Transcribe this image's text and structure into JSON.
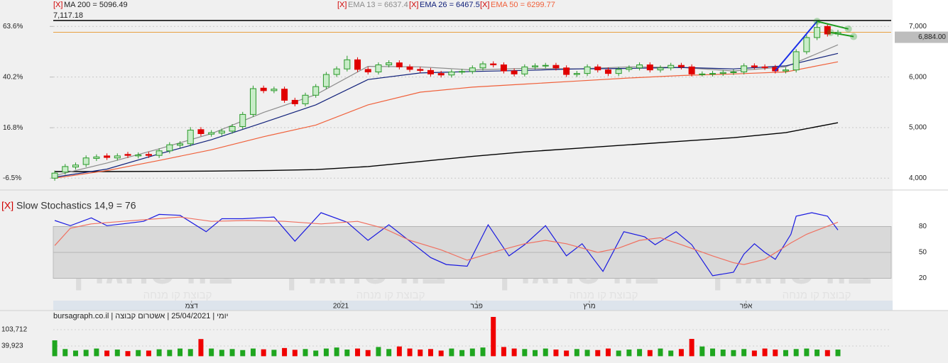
{
  "chart_data": [
    {
      "type": "candlestick",
      "close_mark": "[X]",
      "open": [
        4000,
        4120,
        4220,
        4270,
        4390,
        4440,
        4400,
        4470,
        4440,
        4470,
        4450,
        4540,
        4650,
        4680,
        4960,
        4870,
        4890,
        4930,
        5020,
        5260,
        5780,
        5730,
        5760,
        5540,
        5470,
        5640,
        5810,
        6050,
        6160,
        6340,
        6150,
        6100,
        6240,
        6280,
        6200,
        6150,
        6130,
        6070,
        6040,
        6100,
        6110,
        6180,
        6260,
        6240,
        6120,
        6060,
        6200,
        6220,
        6230,
        6180,
        6050,
        6070,
        6200,
        6140,
        6070,
        6150,
        6180,
        6240,
        6140,
        6180,
        6230,
        6200,
        6060,
        6060,
        6070,
        6090,
        6100,
        6220,
        6200,
        6190,
        6120,
        6140,
        6500,
        6780,
        7000,
        6850
      ],
      "high": [
        4150,
        4280,
        4310,
        4450,
        4470,
        4490,
        4490,
        4520,
        4510,
        4520,
        4590,
        4710,
        4730,
        5010,
        5010,
        4950,
        4980,
        5070,
        5310,
        5830,
        5830,
        5810,
        5810,
        5590,
        5690,
        5860,
        6100,
        6210,
        6420,
        6390,
        6200,
        6290,
        6330,
        6330,
        6250,
        6200,
        6180,
        6120,
        6150,
        6160,
        6230,
        6310,
        6310,
        6290,
        6170,
        6250,
        6270,
        6280,
        6280,
        6230,
        6120,
        6250,
        6250,
        6190,
        6200,
        6230,
        6290,
        6290,
        6230,
        6280,
        6280,
        6250,
        6110,
        6120,
        6140,
        6150,
        6270,
        6270,
        6250,
        6240,
        6190,
        6550,
        6830,
        7100,
        7050,
        6930
      ],
      "low": [
        3950,
        4070,
        4170,
        4220,
        4340,
        4360,
        4350,
        4400,
        4390,
        4400,
        4400,
        4490,
        4600,
        4630,
        4830,
        4820,
        4840,
        4880,
        4970,
        5210,
        5680,
        5680,
        5490,
        5420,
        5420,
        5590,
        5760,
        6000,
        6110,
        6100,
        6050,
        6050,
        6190,
        6150,
        6100,
        6080,
        6010,
        5990,
        5990,
        6050,
        6060,
        6130,
        6190,
        6070,
        6010,
        6010,
        6150,
        6170,
        6130,
        6000,
        6000,
        6020,
        6090,
        6020,
        6020,
        6100,
        6130,
        6090,
        6090,
        6130,
        6150,
        6010,
        6010,
        6010,
        6020,
        6040,
        6050,
        6150,
        6140,
        6070,
        6070,
        6090,
        6450,
        6730,
        6800,
        6800
      ],
      "close": [
        4100,
        4230,
        4260,
        4400,
        4420,
        4410,
        4440,
        4450,
        4460,
        4450,
        4540,
        4660,
        4680,
        4950,
        4880,
        4900,
        4930,
        5020,
        5260,
        5770,
        5730,
        5760,
        5540,
        5470,
        5640,
        5810,
        6050,
        6160,
        6340,
        6150,
        6100,
        6240,
        6280,
        6200,
        6150,
        6130,
        6060,
        6040,
        6100,
        6110,
        6180,
        6260,
        6240,
        6120,
        6060,
        6200,
        6220,
        6230,
        6180,
        6050,
        6070,
        6200,
        6140,
        6070,
        6150,
        6180,
        6240,
        6140,
        6180,
        6230,
        6200,
        6060,
        6060,
        6070,
        6090,
        6100,
        6220,
        6200,
        6190,
        6120,
        6140,
        6500,
        6780,
        6980,
        6850,
        6884
      ],
      "up_color": "#c8ecc8",
      "up_edge": "#2a9a2a",
      "down_color": "#e00000",
      "series": [
        {
          "name": "MA 200 = 5096.49",
          "color": "#000000",
          "x": [
            0,
            5,
            10,
            15,
            20,
            25,
            30,
            35,
            40,
            45,
            50,
            55,
            60,
            65,
            70,
            75
          ],
          "values": [
            4130,
            4130,
            4135,
            4140,
            4150,
            4170,
            4230,
            4330,
            4430,
            4520,
            4590,
            4660,
            4730,
            4800,
            4900,
            5096
          ]
        },
        {
          "name": "EMA 13 = 6637.4",
          "color": "#8c8c8c",
          "x": [
            0,
            5,
            10,
            15,
            20,
            25,
            30,
            35,
            40,
            45,
            50,
            55,
            60,
            65,
            70,
            75
          ],
          "values": [
            4050,
            4300,
            4580,
            4880,
            5300,
            5650,
            6210,
            6200,
            6140,
            6170,
            6160,
            6200,
            6190,
            6120,
            6200,
            6637
          ]
        },
        {
          "name": "EMA 26 = 6467.5",
          "color": "#10207a",
          "x": [
            0,
            5,
            10,
            15,
            20,
            25,
            30,
            35,
            40,
            45,
            50,
            55,
            60,
            65,
            70,
            75
          ],
          "values": [
            4020,
            4180,
            4480,
            4760,
            5100,
            5450,
            5950,
            6080,
            6110,
            6130,
            6160,
            6170,
            6190,
            6160,
            6220,
            6467
          ]
        },
        {
          "name": "EMA 50 = 6299.77",
          "color": "#f0603a",
          "x": [
            0,
            5,
            10,
            15,
            20,
            25,
            30,
            35,
            40,
            45,
            50,
            55,
            60,
            65,
            70,
            75
          ],
          "values": [
            4000,
            4150,
            4350,
            4560,
            4820,
            5050,
            5450,
            5700,
            5800,
            5860,
            5920,
            5980,
            6030,
            6060,
            6100,
            6300
          ]
        }
      ],
      "levels": [
        {
          "value": 7117.18,
          "label": "7,117.18",
          "color": "#000000"
        },
        {
          "value": 6884,
          "label": "6,884.00",
          "color": "#e8a040"
        }
      ],
      "trendlines": [
        {
          "color": "#1a2ee8",
          "x": [
            69,
            73
          ],
          "values": [
            6120,
            7100
          ]
        },
        {
          "color": "#1e9a1e",
          "x": [
            73,
            76
          ],
          "values": [
            7100,
            6950
          ]
        },
        {
          "color": "#1e9a1e",
          "x": [
            74.3,
            76.5
          ],
          "values": [
            6880,
            6800
          ]
        }
      ],
      "xlim": [
        -0.14,
        80.1
      ],
      "ylim": [
        3850,
        7130
      ],
      "yticks": [
        {
          "value": 4000,
          "label": "4,000"
        },
        {
          "value": 5000,
          "label": "5,000"
        },
        {
          "value": 6000,
          "label": "6,000"
        },
        {
          "value": 7000,
          "label": "7,000"
        }
      ],
      "y2lim": [
        -10.0,
        66.64
      ],
      "y2ticks": [
        {
          "value": -6.5,
          "label": "-6.5%"
        },
        {
          "value": 16.8,
          "label": "16.8%"
        },
        {
          "value": 40.2,
          "label": "40.2%"
        },
        {
          "value": 63.6,
          "label": "63.6%"
        }
      ],
      "grid": true
    },
    {
      "type": "line",
      "close_mark": "[X]",
      "title": "Slow Stochastics 14,9 = 76",
      "series": [
        {
          "color": "#1a1ae0",
          "x": [
            0,
            1.5,
            3.5,
            5,
            6.5,
            8.5,
            10,
            12,
            14.5,
            16,
            18,
            21,
            23,
            25.5,
            28,
            30,
            32,
            34,
            36,
            37.5,
            39.5,
            41.5,
            43.5,
            45,
            47,
            49,
            50.5,
            52.5,
            54.5,
            56.5,
            57.5,
            59.5,
            61,
            63,
            65,
            66,
            67,
            68,
            69,
            70.5,
            71,
            72.5,
            74,
            75
          ],
          "values": [
            87,
            81,
            90,
            81,
            83,
            86,
            94,
            93,
            74,
            89,
            89,
            91,
            63,
            96,
            85,
            64,
            82,
            63,
            44,
            36,
            34,
            82,
            46,
            59,
            81,
            46,
            60,
            28,
            74,
            68,
            59,
            74,
            59,
            23,
            27,
            48,
            60,
            50,
            42,
            71,
            92,
            96,
            92,
            76
          ]
        },
        {
          "color": "#f07060",
          "x": [
            0,
            1.5,
            3.5,
            6.5,
            12,
            15,
            18.5,
            22,
            25.5,
            29,
            31.5,
            34,
            37,
            39.5,
            42.5,
            45,
            47,
            49,
            52,
            54,
            56,
            58,
            60,
            63,
            65,
            66,
            68,
            70.5,
            72,
            75
          ],
          "values": [
            58,
            78,
            83,
            86,
            91,
            86,
            87,
            86,
            83,
            86,
            78,
            64,
            53,
            41,
            52,
            60,
            64,
            60,
            50,
            55,
            64,
            67,
            59,
            46,
            38,
            36,
            42,
            61,
            71,
            85
          ]
        }
      ],
      "xlim": [
        -0.14,
        80.1
      ],
      "ylim": [
        -5,
        96
      ],
      "yticks": [
        20,
        50,
        80
      ],
      "band": true,
      "xticks": [
        {
          "value": 13.1,
          "label": "דצמ"
        },
        {
          "value": 27.4,
          "label": "2021"
        },
        {
          "value": 40.4,
          "label": "פבר"
        },
        {
          "value": 51.2,
          "label": "מרץ"
        },
        {
          "value": 66.2,
          "label": "אפר"
        }
      ]
    },
    {
      "type": "bar",
      "values": [
        62000,
        28000,
        22000,
        25000,
        30000,
        22000,
        26000,
        20000,
        24000,
        22000,
        27000,
        25000,
        30000,
        28000,
        67000,
        30000,
        25000,
        28000,
        24000,
        30000,
        27000,
        25000,
        32000,
        25000,
        28000,
        22000,
        30000,
        34000,
        26000,
        30000,
        24000,
        36000,
        28000,
        38000,
        30000,
        26000,
        28000,
        22000,
        30000,
        24000,
        30000,
        34000,
        153600,
        36000,
        30000,
        28000,
        24000,
        30000,
        26000,
        22000,
        28000,
        25000,
        24000,
        30000,
        22000,
        26000,
        28000,
        24000,
        30000,
        22000,
        28000,
        67600,
        38000,
        30000,
        26000,
        24000,
        28000,
        22000,
        30000,
        26000,
        24000,
        28000,
        30000,
        26000,
        24000,
        26000
      ],
      "up_color": "#1fa61f",
      "down_color": "#f00000",
      "xlim": [
        -0.14,
        80.1
      ],
      "ylim": [
        -26600,
        173000
      ],
      "yticks": [
        {
          "value": 39923,
          "label": "39,923"
        },
        {
          "value": 103712,
          "label": "103,712"
        }
      ]
    }
  ],
  "footer": "יומי | 25/04/2021 | אשטרום קבוצה | bursagraph.co.il",
  "watermark": {
    "name": "בורסהגרף",
    "tagline": "קבוצת קו מנחה"
  }
}
